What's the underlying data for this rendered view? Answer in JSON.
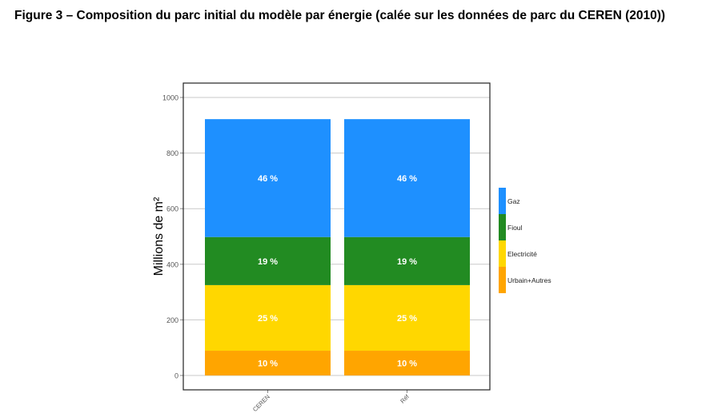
{
  "figure_title": "Figure 3 – Composition du parc initial du modèle par énergie (calée sur les données de parc du CEREN (2010))",
  "chart_data": {
    "type": "bar",
    "stacked": true,
    "categories": [
      "CEREN",
      "Réf"
    ],
    "series": [
      {
        "name": "Urbain+Autres",
        "color": "#FFA500",
        "values": [
          89,
          89
        ],
        "labels": [
          "10 %",
          "10 %"
        ]
      },
      {
        "name": "Electricité",
        "color": "#FFD700",
        "values": [
          236,
          236
        ],
        "labels": [
          "25 %",
          "25 %"
        ]
      },
      {
        "name": "Fioul",
        "color": "#228B22",
        "values": [
          173,
          173
        ],
        "labels": [
          "19 %",
          "19 %"
        ]
      },
      {
        "name": "Gaz",
        "color": "#1E90FF",
        "values": [
          424,
          424
        ],
        "labels": [
          "46 %",
          "46 %"
        ]
      }
    ],
    "ylabel": "Millions de m²",
    "xlabel": "",
    "ylim": [
      -50,
      1050
    ],
    "yticks": [
      0,
      200,
      400,
      600,
      800,
      1000
    ],
    "grid": true,
    "legend_position": "right",
    "legend_order": [
      "Gaz",
      "Fioul",
      "Electricité",
      "Urbain+Autres"
    ]
  }
}
